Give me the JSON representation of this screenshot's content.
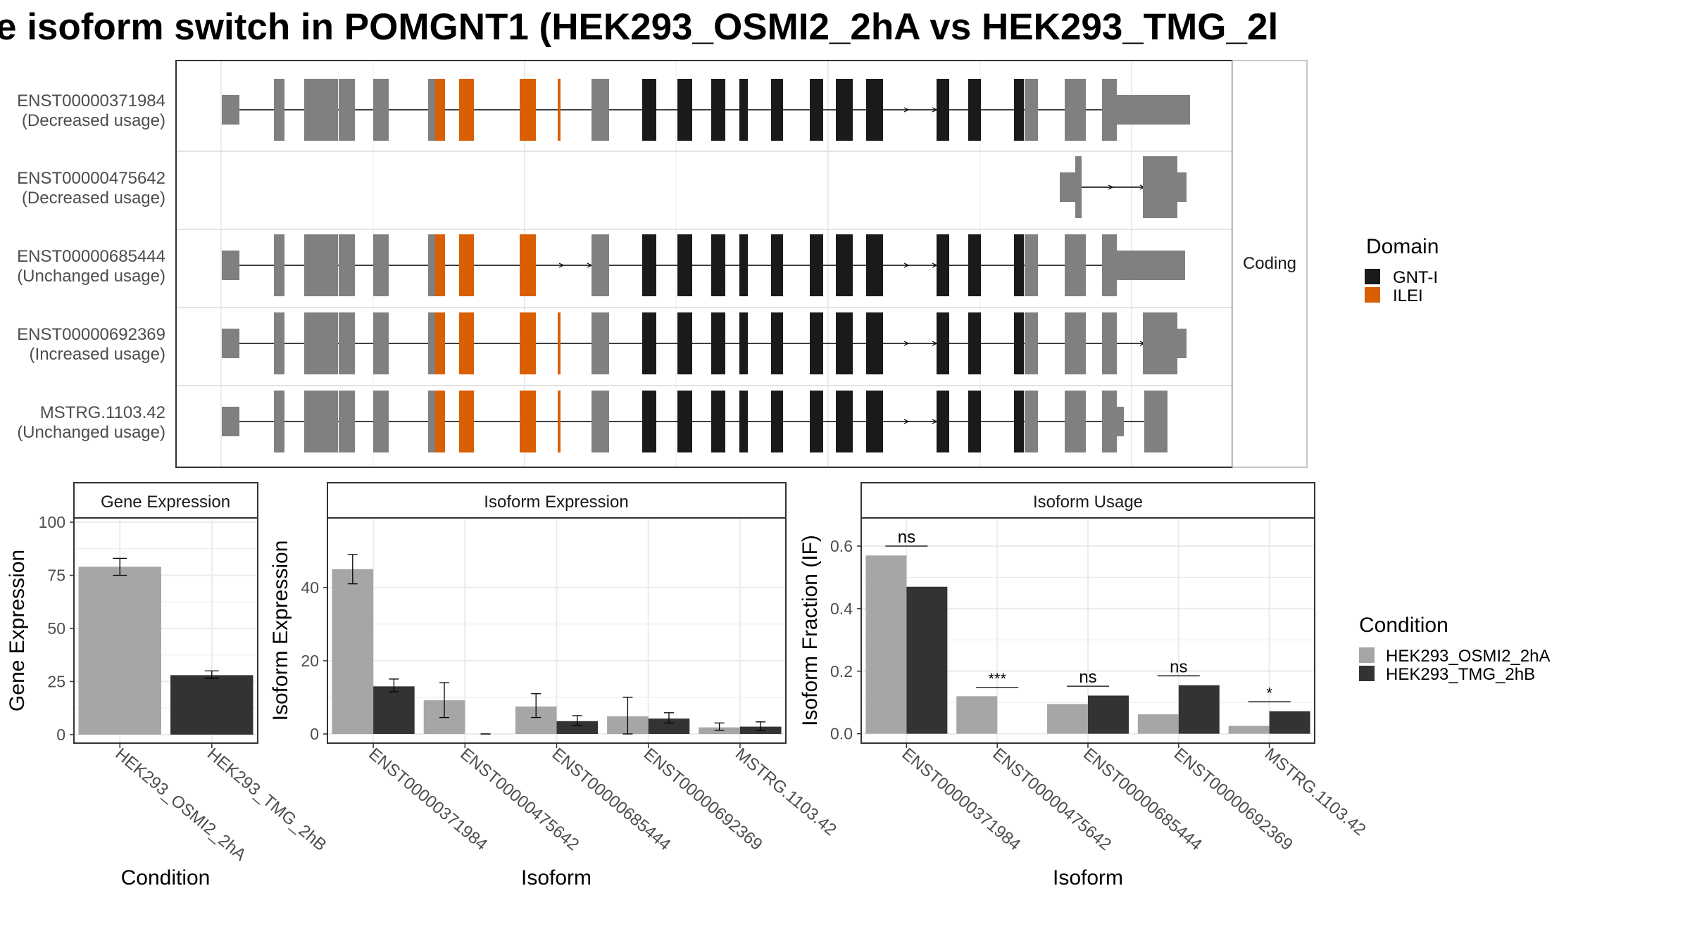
{
  "title": "e isoform switch in POMGNT1 (HEK293_OSMI2_2hA vs HEK293_TMG_2l",
  "colors": {
    "exon_gray": "#808080",
    "gnt1": "#1a1a1a",
    "ilei": "#d95f02",
    "cond_a": "#a6a6a6",
    "cond_b": "#333333",
    "grid": "#ebebeb",
    "strip_fill": "#ffffff"
  },
  "transcripts": {
    "strip_label": "Coding",
    "items": [
      {
        "id": "ENST00000371984",
        "usage": "(Decreased usage)"
      },
      {
        "id": "ENST00000475642",
        "usage": "(Decreased usage)"
      },
      {
        "id": "ENST00000685444",
        "usage": "(Unchanged usage)"
      },
      {
        "id": "ENST00000692369",
        "usage": "(Increased usage)"
      },
      {
        "id": "MSTRG.1103.42",
        "usage": "(Unchanged usage)"
      }
    ]
  },
  "legend_domain": {
    "title": "Domain",
    "items": [
      {
        "label": "GNT-I",
        "color": "#1a1a1a"
      },
      {
        "label": "ILEI",
        "color": "#d95f02"
      }
    ]
  },
  "legend_condition": {
    "title": "Condition",
    "items": [
      {
        "label": "HEK293_OSMI2_2hA",
        "color": "#a6a6a6"
      },
      {
        "label": "HEK293_TMG_2hB",
        "color": "#333333"
      }
    ]
  },
  "chart_data": [
    {
      "type": "bar",
      "title": "Gene Expression",
      "xlabel": "Condition",
      "ylabel": "Gene Expression",
      "categories": [
        "HEK293_OSMI2_2hA",
        "HEK293_TMG_2hB"
      ],
      "values": [
        79,
        28
      ],
      "errors": [
        [
          75,
          83
        ],
        [
          26.5,
          30
        ]
      ],
      "ylim": [
        -4,
        102
      ],
      "yticks": [
        0,
        25,
        50,
        75,
        100
      ]
    },
    {
      "type": "bar",
      "title": "Isoform Expression",
      "xlabel": "Isoform",
      "ylabel": "Isoform Expression",
      "categories": [
        "ENST00000371984",
        "ENST00000475642",
        "ENST00000685444",
        "ENST00000692369",
        "MSTRG.1103.42"
      ],
      "series": [
        {
          "name": "HEK293_OSMI2_2hA",
          "values": [
            45,
            9.2,
            7.5,
            4.8,
            1.8
          ],
          "errors": [
            [
              41,
              49
            ],
            [
              4.5,
              14
            ],
            [
              4.5,
              11
            ],
            [
              0,
              10
            ],
            [
              1,
              3
            ]
          ]
        },
        {
          "name": "HEK293_TMG_2hB",
          "values": [
            13,
            0,
            3.5,
            4.2,
            2
          ],
          "errors": [
            [
              11.5,
              15
            ],
            [
              0,
              0
            ],
            [
              2.3,
              5
            ],
            [
              3,
              5.8
            ],
            [
              1,
              3.3
            ]
          ]
        }
      ],
      "ylim": [
        -2.5,
        59
      ],
      "yticks": [
        0,
        20,
        40
      ]
    },
    {
      "type": "bar",
      "title": "Isoform Usage",
      "xlabel": "Isoform",
      "ylabel": "Isoform Fraction (IF)",
      "categories": [
        "ENST00000371984",
        "ENST00000475642",
        "ENST00000685444",
        "ENST00000692369",
        "MSTRG.1103.42"
      ],
      "series": [
        {
          "name": "HEK293_OSMI2_2hA",
          "values": [
            0.57,
            0.12,
            0.095,
            0.062,
            0.025
          ]
        },
        {
          "name": "HEK293_TMG_2hB",
          "values": [
            0.47,
            0,
            0.122,
            0.155,
            0.072
          ]
        }
      ],
      "significance": [
        "ns",
        "***",
        "ns",
        "ns",
        "*"
      ],
      "significance_y": [
        0.6,
        0.148,
        0.152,
        0.185,
        0.102
      ],
      "ylim": [
        -0.03,
        0.69
      ],
      "yticks": [
        0.0,
        0.2,
        0.4,
        0.6
      ],
      "ytick_labels": [
        "0.0",
        "0.2",
        "0.4",
        "0.6"
      ]
    }
  ]
}
